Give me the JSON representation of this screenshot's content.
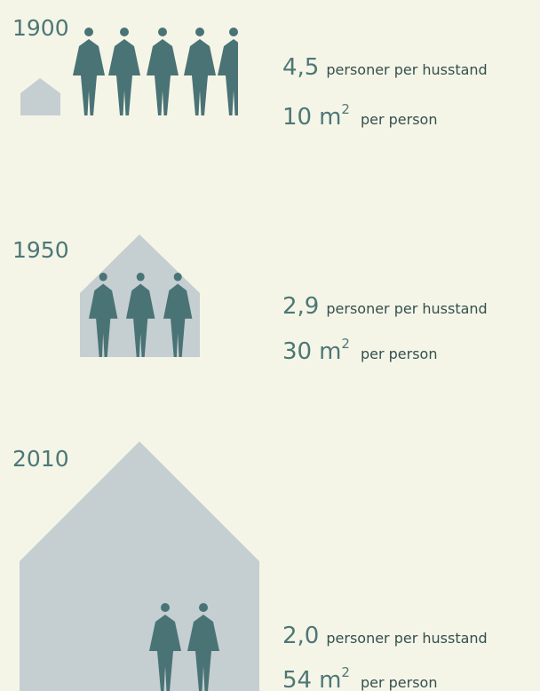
{
  "rows": [
    {
      "year": "1900",
      "persons": "4,5",
      "persons_label": "personer per husstand",
      "area": "10",
      "unit": "m",
      "unit_sup": "2",
      "area_label": "per person"
    },
    {
      "year": "1950",
      "persons": "2,9",
      "persons_label": "personer per husstand",
      "area": "30",
      "unit": "m",
      "unit_sup": "2",
      "area_label": "per person"
    },
    {
      "year": "2010",
      "persons": "2,0",
      "persons_label": "personer per husstand",
      "area": "54",
      "unit": "m",
      "unit_sup": "2",
      "area_label": "per person"
    }
  ]
}
